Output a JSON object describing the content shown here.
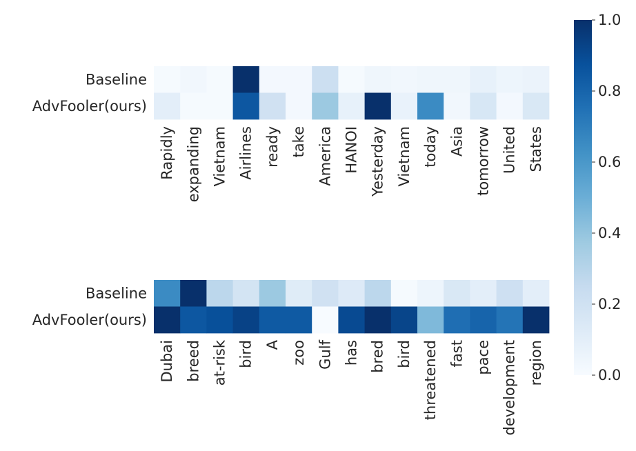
{
  "chart_data": [
    {
      "type": "heatmap",
      "rows": [
        "Baseline",
        "AdvFooler(ours)"
      ],
      "columns": [
        "Rapidly",
        "expanding",
        "Vietnam",
        "Airlines",
        "ready",
        "take",
        "America",
        "HANOI",
        "Yesterday",
        "Vietnam",
        "today",
        "Asia",
        "tomorrow",
        "United",
        "States"
      ],
      "values": [
        [
          0.01,
          0.03,
          0.01,
          1.0,
          0.02,
          0.02,
          0.22,
          0.01,
          0.04,
          0.03,
          0.04,
          0.04,
          0.08,
          0.05,
          0.06
        ],
        [
          0.1,
          0.01,
          0.01,
          0.85,
          0.2,
          0.02,
          0.38,
          0.08,
          1.0,
          0.07,
          0.65,
          0.03,
          0.16,
          0.02,
          0.15
        ]
      ],
      "vmin": 0.0,
      "vmax": 1.0,
      "colormap": "Blues"
    },
    {
      "type": "heatmap",
      "rows": [
        "Baseline",
        "AdvFooler(ours)"
      ],
      "columns": [
        "Dubai",
        "breed",
        "at-risk",
        "bird",
        "A",
        "zoo",
        "Gulf",
        "has",
        "bred",
        "bird",
        "threatened",
        "fast",
        "pace",
        "development",
        "region"
      ],
      "values": [
        [
          0.65,
          1.0,
          0.28,
          0.18,
          0.38,
          0.12,
          0.2,
          0.13,
          0.28,
          0.01,
          0.05,
          0.15,
          0.1,
          0.21,
          0.1
        ],
        [
          1.0,
          0.85,
          0.88,
          0.93,
          0.84,
          0.84,
          0.0,
          0.9,
          1.0,
          0.92,
          0.45,
          0.76,
          0.8,
          0.74,
          1.0
        ]
      ],
      "vmin": 0.0,
      "vmax": 1.0,
      "colormap": "Blues"
    }
  ],
  "colorbar": {
    "ticks": [
      "0.0",
      "0.2",
      "0.4",
      "0.6",
      "0.8",
      "1.0"
    ],
    "range": [
      0.0,
      1.0
    ]
  }
}
